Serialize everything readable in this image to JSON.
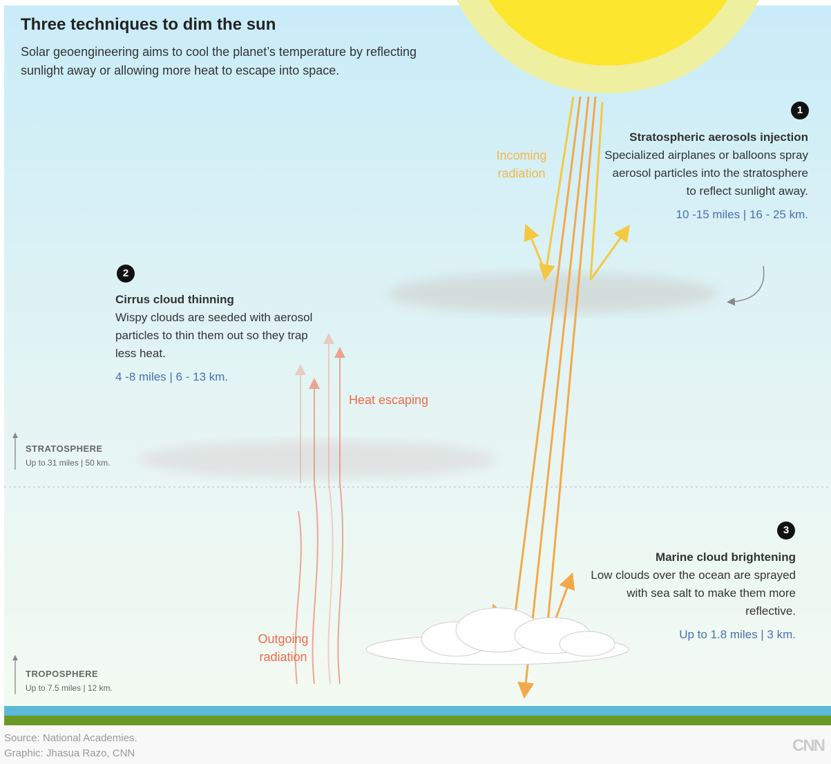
{
  "header": {
    "title": "Three techniques to dim the sun",
    "subtitle": "Solar geoengineering aims to cool the planet’s temperature by reflecting sunlight away or allowing more heat to escape into space."
  },
  "techniques": [
    {
      "number": "1",
      "title": "Stratospheric aerosols injection",
      "description": "Specialized airplanes or balloons spray aerosol particles into the stratosphere to reflect sunlight away.",
      "altitude": "10 -15 miles | 16 - 25 km."
    },
    {
      "number": "2",
      "title": "Cirrus cloud thinning",
      "description": "Wispy clouds are seeded with aerosol particles to thin them out so they trap less heat.",
      "altitude": "4 -8 miles | 6 - 13 km."
    },
    {
      "number": "3",
      "title": "Marine cloud brightening",
      "description": "Low clouds over the ocean are sprayed with sea salt to make them more reflective.",
      "altitude": "Up to 1.8 miles | 3 km."
    }
  ],
  "labels": {
    "incoming": "Incoming radiation",
    "heat_escaping": "Heat escaping",
    "outgoing": "Outgoing radiation"
  },
  "layers": [
    {
      "name": "STRATOSPHERE",
      "extent": "Up to 31 miles | 50 km."
    },
    {
      "name": "TROPOSPHERE",
      "extent": "Up to 7.5 miles | 12 km."
    }
  ],
  "footer": {
    "source": "Source: National Academies.",
    "credit": "Graphic: Jhasua Razo, CNN",
    "logo": "CNN"
  }
}
